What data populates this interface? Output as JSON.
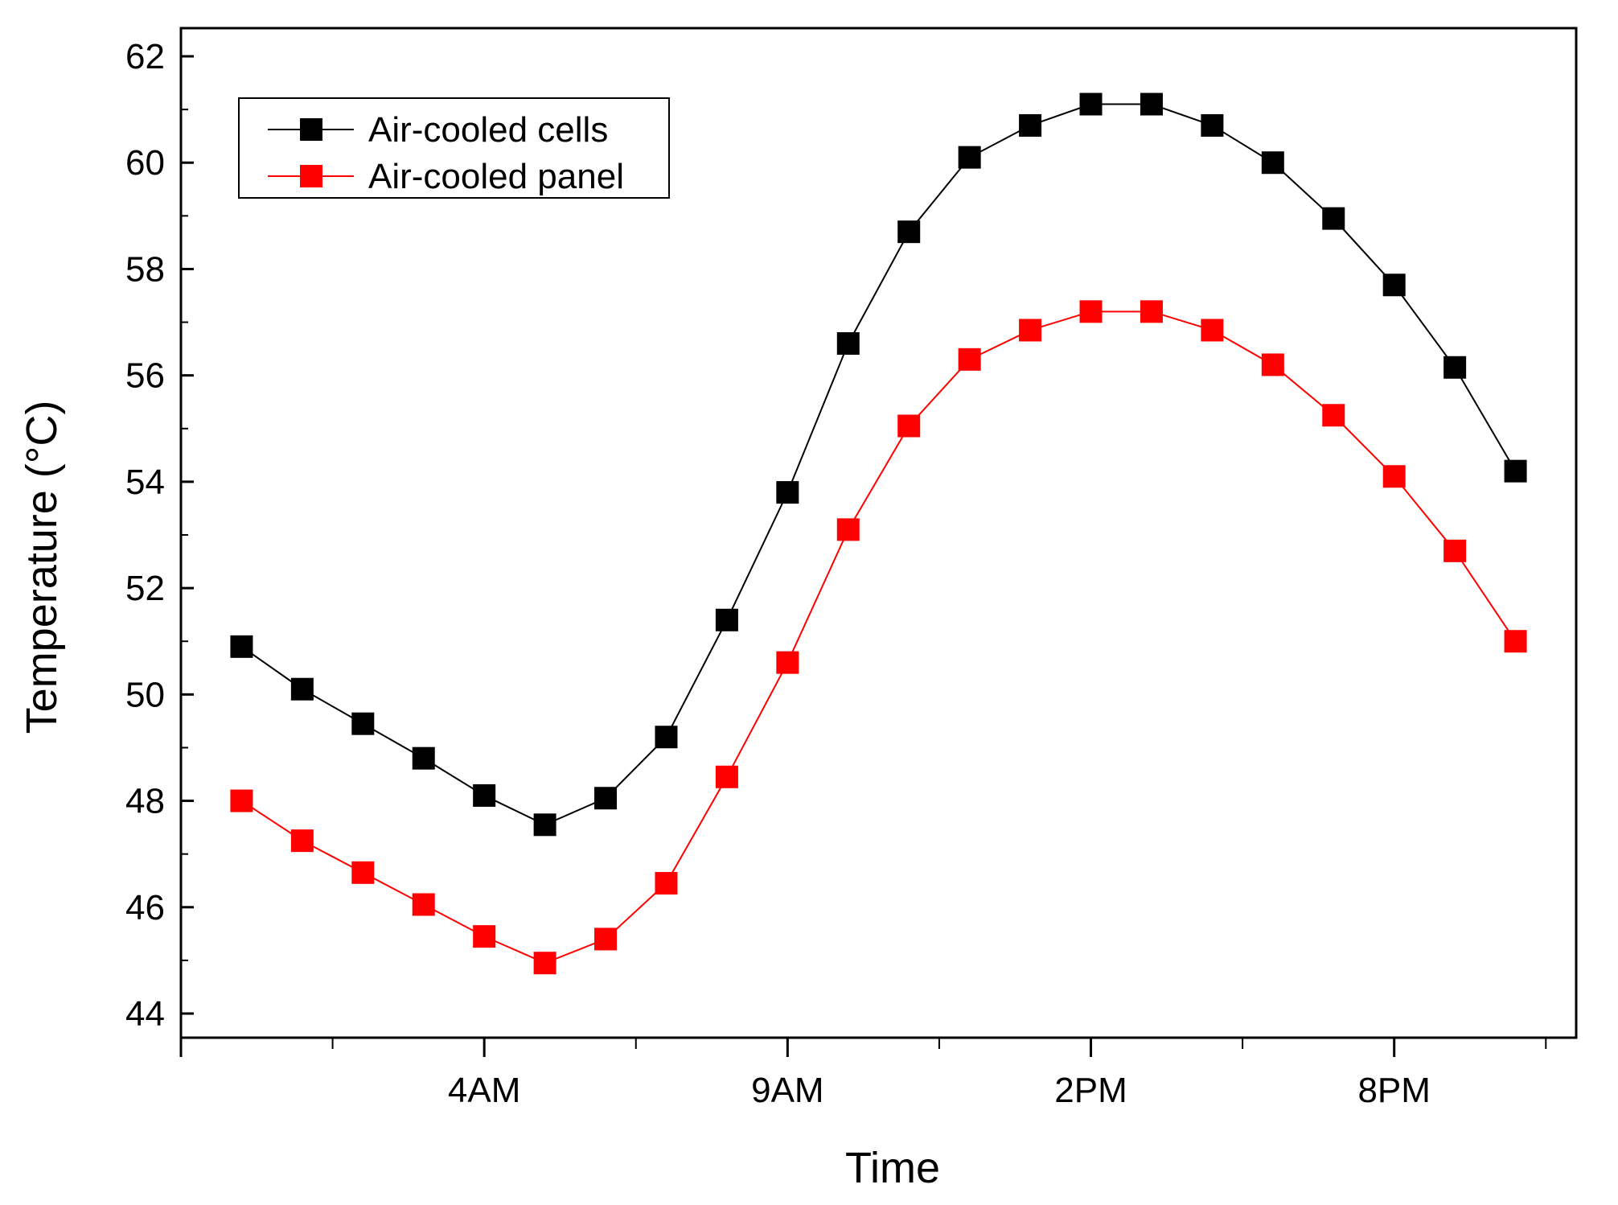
{
  "chart_data": {
    "type": "line",
    "title": "",
    "xlabel": "Time",
    "ylabel": "Temperature (°C)",
    "ylim": [
      44,
      62
    ],
    "yticks": [
      44,
      46,
      48,
      50,
      52,
      54,
      56,
      58,
      60,
      62
    ],
    "xlim": [
      0,
      23
    ],
    "xticks": [
      {
        "value": 5,
        "label": "4AM"
      },
      {
        "value": 10,
        "label": "9AM"
      },
      {
        "value": 15,
        "label": "2PM"
      },
      {
        "value": 20,
        "label": "8PM"
      }
    ],
    "x": [
      1,
      2,
      3,
      4,
      5,
      6,
      7,
      8,
      9,
      10,
      11,
      12,
      13,
      14,
      15,
      16,
      17,
      18,
      19,
      20,
      21,
      22
    ],
    "grid": false,
    "legend_position": "top-left",
    "series": [
      {
        "name": "Air-cooled cells",
        "color": "#000000",
        "values": [
          50.9,
          50.1,
          49.45,
          48.8,
          48.1,
          47.55,
          48.05,
          49.2,
          51.4,
          53.8,
          56.6,
          58.7,
          60.1,
          60.7,
          61.1,
          61.1,
          60.7,
          60.0,
          58.95,
          57.7,
          56.15,
          54.2
        ]
      },
      {
        "name": "Air-cooled panel",
        "color": "#ff0000",
        "values": [
          48.0,
          47.25,
          46.65,
          46.05,
          45.45,
          44.95,
          45.4,
          46.45,
          48.45,
          50.6,
          53.1,
          55.05,
          56.3,
          56.85,
          57.2,
          57.2,
          56.85,
          56.2,
          55.25,
          54.1,
          52.7,
          51.0
        ]
      }
    ]
  }
}
